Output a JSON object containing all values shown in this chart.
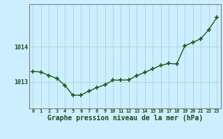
{
  "x": [
    0,
    1,
    2,
    3,
    4,
    5,
    6,
    7,
    8,
    9,
    10,
    11,
    12,
    13,
    14,
    15,
    16,
    17,
    18,
    19,
    20,
    21,
    22,
    23
  ],
  "y": [
    1013.3,
    1013.28,
    1013.18,
    1013.1,
    1012.9,
    1012.62,
    1012.63,
    1012.74,
    1012.84,
    1012.92,
    1013.05,
    1013.05,
    1013.06,
    1013.18,
    1013.27,
    1013.37,
    1013.47,
    1013.52,
    1013.51,
    1014.02,
    1014.12,
    1014.22,
    1014.48,
    1014.82
  ],
  "line_color": "#1a5c1a",
  "marker_color": "#1a5c1a",
  "bg_color": "#cceeff",
  "grid_color": "#aad4d4",
  "axis_color": "#808080",
  "xlabel": "Graphe pression niveau de la mer (hPa)",
  "xlabel_fontsize": 7,
  "ytick_labels": [
    "1013",
    "1014"
  ],
  "ytick_values": [
    1013.0,
    1014.0
  ],
  "ylim": [
    1012.25,
    1015.2
  ],
  "xlim": [
    -0.5,
    23.5
  ],
  "xtick_labels": [
    "0",
    "1",
    "2",
    "3",
    "4",
    "5",
    "6",
    "7",
    "8",
    "9",
    "10",
    "11",
    "12",
    "13",
    "14",
    "15",
    "16",
    "17",
    "18",
    "19",
    "20",
    "21",
    "22",
    "23"
  ],
  "marker_size": 4,
  "line_width": 1.0
}
